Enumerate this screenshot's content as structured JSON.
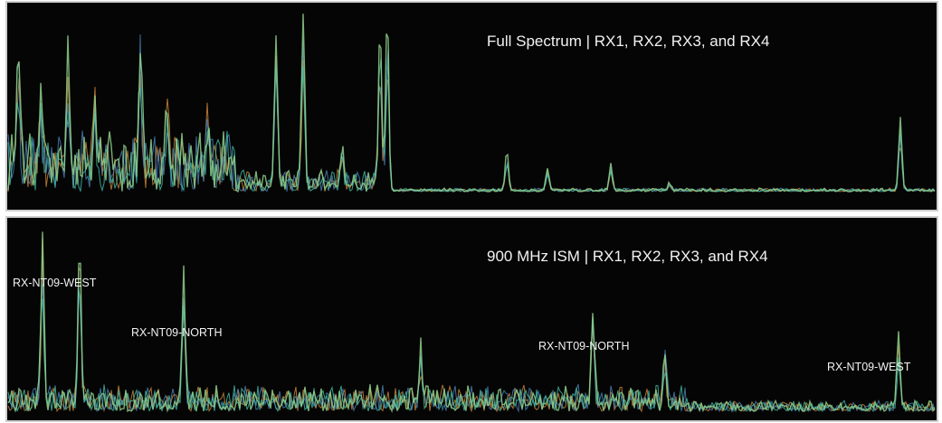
{
  "panels": [
    {
      "title": "Full Spectrum | RX1, RX2, RX3, and RX4",
      "labels": []
    },
    {
      "title": "900 MHz ISM |  RX1, RX2, RX3, and RX4",
      "labels": [
        "RX-NT09-WEST",
        "RX-NT09-NORTH",
        "RX-NT09-NORTH",
        "RX-NT09-WEST"
      ]
    }
  ]
}
